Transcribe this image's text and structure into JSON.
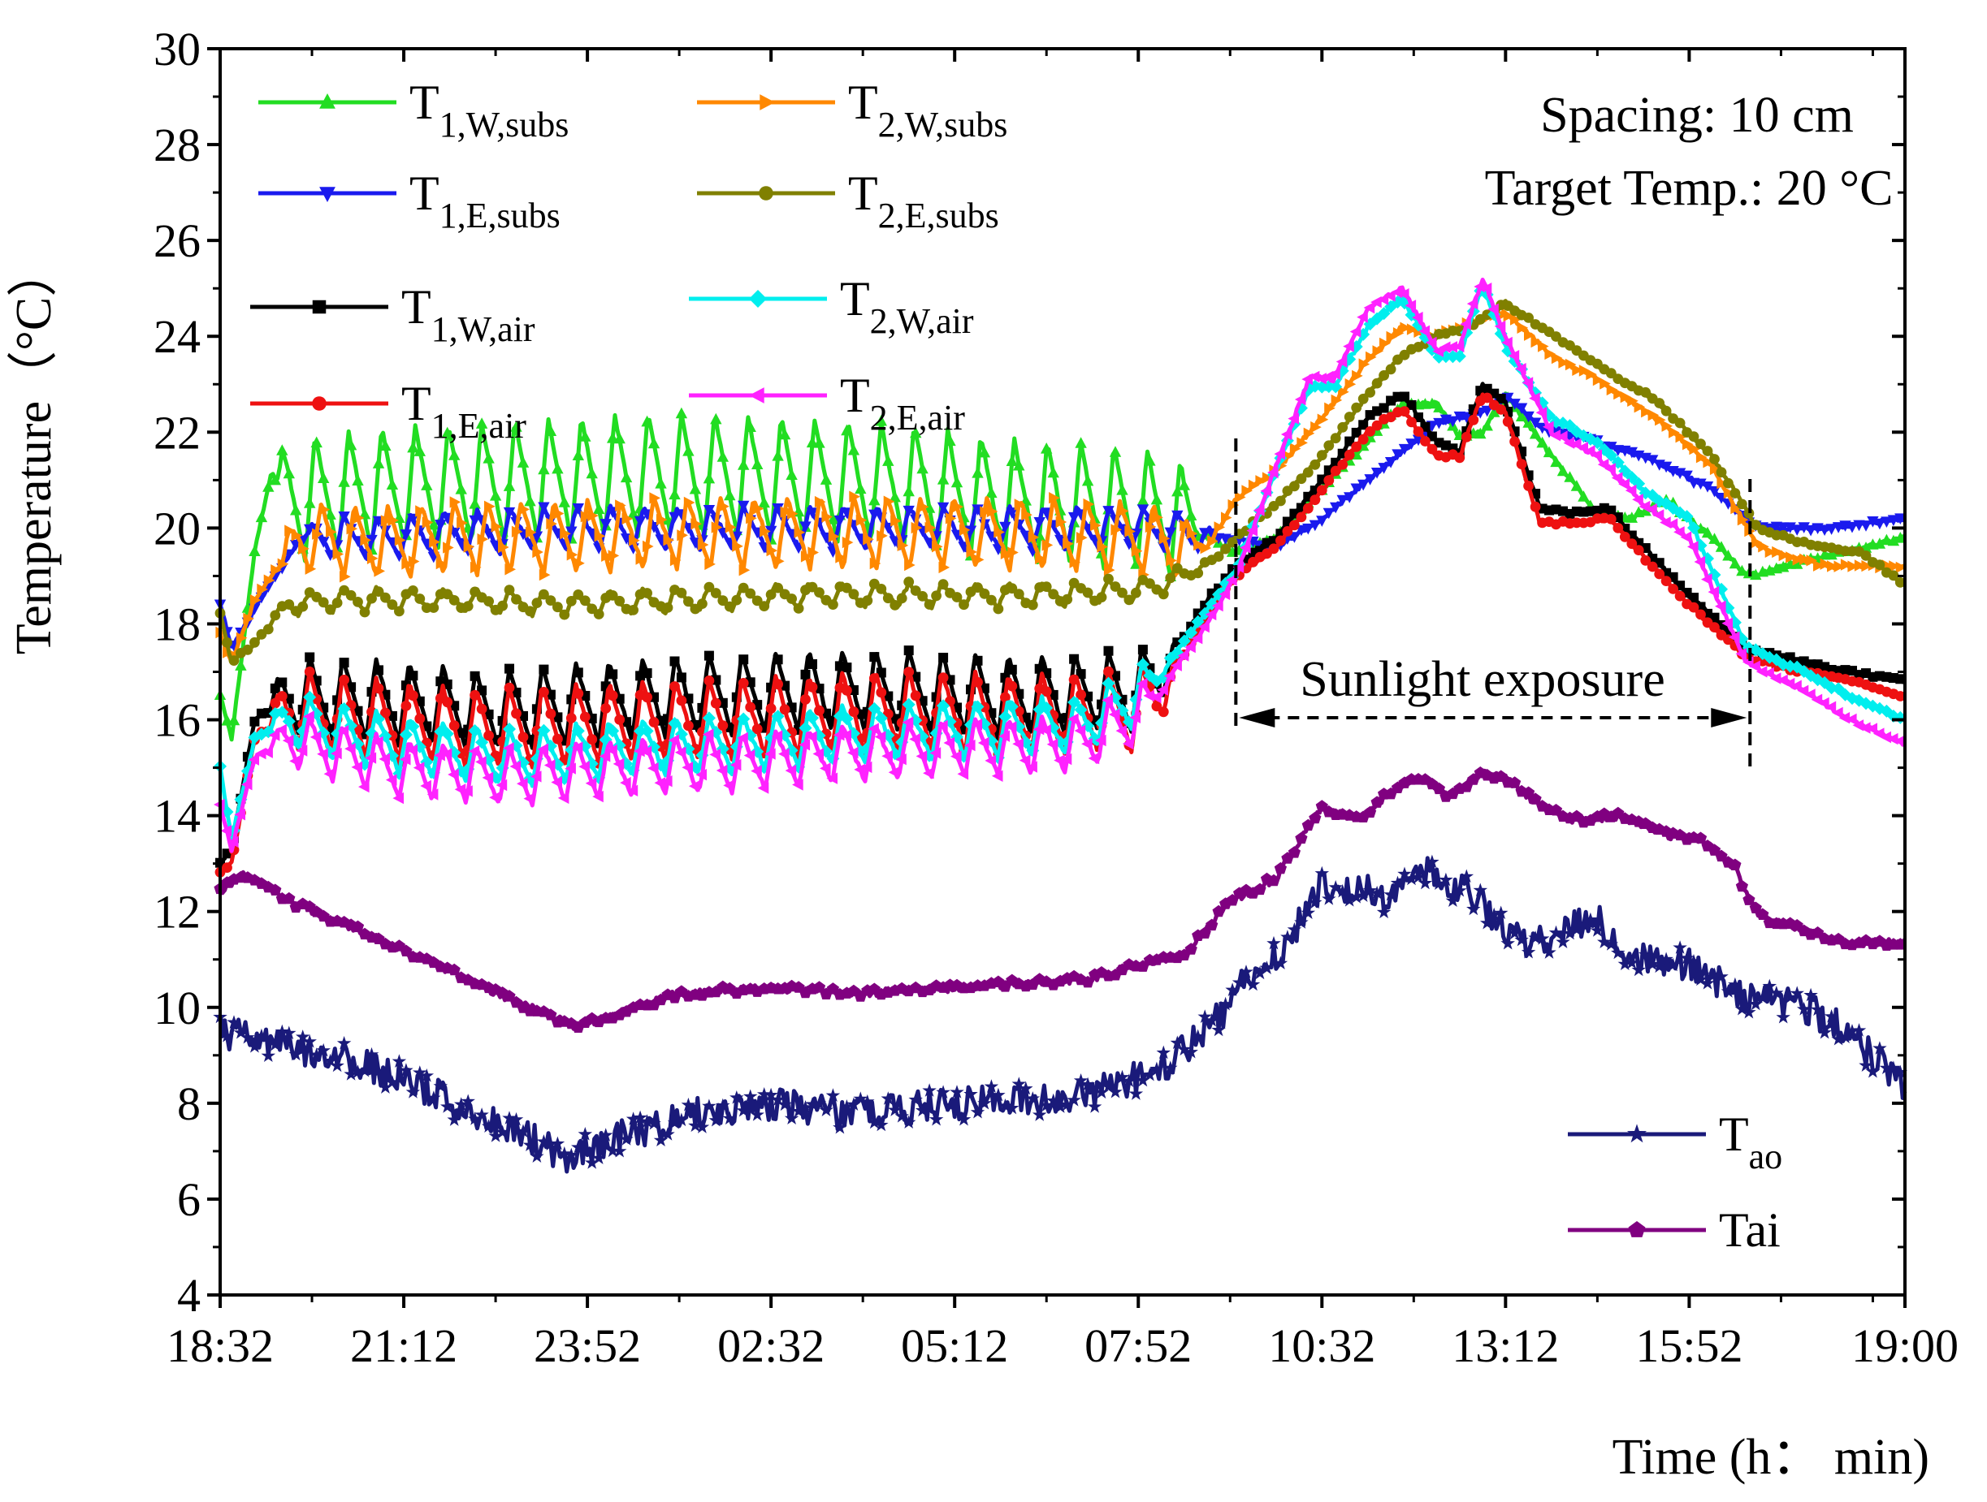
{
  "chart_data": {
    "type": "line",
    "title": "",
    "xlabel": "Time (h： min)",
    "ylabel": "Temperature （°C）",
    "ylabel_main": "Temperature",
    "ylabel_unit": "（°C）",
    "xlim_min": [
      0,
      1468
    ],
    "ylim": [
      4,
      30
    ],
    "yticks": [
      4,
      6,
      8,
      10,
      12,
      14,
      16,
      18,
      20,
      22,
      24,
      26,
      28,
      30
    ],
    "xticks": [
      {
        "min": 0,
        "label": "18:32"
      },
      {
        "min": 160,
        "label": "21:12"
      },
      {
        "min": 320,
        "label": "23:52"
      },
      {
        "min": 480,
        "label": "02:32"
      },
      {
        "min": 640,
        "label": "05:12"
      },
      {
        "min": 800,
        "label": "07:52"
      },
      {
        "min": 960,
        "label": "10:32"
      },
      {
        "min": 1120,
        "label": "13:12"
      },
      {
        "min": 1280,
        "label": "15:52"
      },
      {
        "min": 1468,
        "label": "19:00"
      }
    ],
    "grid": false,
    "annotations": {
      "info_line1": "Spacing: 10 cm",
      "info_line2": "Target Temp.: 20 °C",
      "sunlight_label": "Sunlight exposure",
      "sunlight_start_min": 885,
      "sunlight_end_min": 1333
    },
    "series": [
      {
        "name": "T1,W,subs",
        "main": "T",
        "sub": "1,W,subs",
        "color": "#22dd22",
        "marker": "triangle-up",
        "x": [
          0,
          10,
          30,
          45,
          60,
          130,
          200,
          280,
          360,
          440,
          520,
          600,
          680,
          760,
          800,
          845,
          880,
          920,
          960,
          1000,
          1030,
          1060,
          1080,
          1100,
          1120,
          1160,
          1200,
          1230,
          1260,
          1300,
          1330,
          1380,
          1468
        ],
        "y": [
          16.5,
          15.6,
          19.5,
          21.2,
          20.6,
          20.8,
          20.9,
          21.0,
          21.1,
          21.1,
          21.0,
          20.9,
          20.6,
          20.5,
          20.4,
          20.2,
          19.5,
          19.8,
          20.8,
          21.8,
          22.6,
          22.6,
          21.9,
          22.0,
          22.8,
          21.5,
          20.3,
          20.2,
          20.6,
          19.8,
          19.0,
          19.3,
          19.8
        ],
        "osc": {
          "start": 45,
          "end": 860,
          "period": 29,
          "amp": 1.3
        }
      },
      {
        "name": "T1,E,subs",
        "main": "T",
        "sub": "1,E,subs",
        "color": "#1a1aee",
        "marker": "triangle-down",
        "x": [
          0,
          10,
          30,
          70,
          140,
          200,
          300,
          400,
          500,
          600,
          700,
          800,
          880,
          920,
          960,
          1000,
          1030,
          1060,
          1080,
          1100,
          1120,
          1150,
          1200,
          1250,
          1300,
          1340,
          1400,
          1468
        ],
        "y": [
          18.4,
          17.5,
          18.3,
          19.8,
          19.8,
          19.9,
          20.0,
          20.0,
          20.0,
          20.0,
          20.0,
          20.0,
          19.8,
          19.6,
          20.2,
          21.0,
          21.6,
          22.2,
          22.3,
          22.4,
          22.8,
          22.1,
          21.8,
          21.4,
          20.8,
          20.0,
          20.0,
          20.2
        ],
        "osc": {
          "start": 70,
          "end": 870,
          "period": 29,
          "amp": 0.45
        }
      },
      {
        "name": "T1,W,air",
        "main": "T",
        "sub": "1,W,air",
        "color": "#000000",
        "marker": "square",
        "x": [
          0,
          10,
          30,
          60,
          150,
          230,
          300,
          400,
          500,
          600,
          700,
          800,
          830,
          860,
          885,
          920,
          960,
          1000,
          1030,
          1060,
          1080,
          1100,
          1120,
          1150,
          1180,
          1210,
          1240,
          1280,
          1330,
          1380,
          1420,
          1468
        ],
        "y": [
          13.0,
          13.3,
          16.0,
          16.5,
          16.4,
          16.2,
          16.3,
          16.5,
          16.6,
          16.6,
          16.5,
          16.6,
          17.3,
          18.5,
          19.2,
          19.8,
          21.0,
          22.3,
          22.8,
          21.8,
          21.6,
          23.0,
          22.6,
          20.4,
          20.3,
          20.4,
          19.6,
          18.6,
          17.5,
          17.2,
          17.0,
          16.8
        ],
        "osc": {
          "start": 40,
          "end": 840,
          "period": 29,
          "amp": 0.85
        }
      },
      {
        "name": "T1,E,air",
        "main": "T",
        "sub": "1,E,air",
        "color": "#ee1111",
        "marker": "circle",
        "x": [
          0,
          10,
          30,
          60,
          150,
          230,
          300,
          400,
          500,
          600,
          700,
          800,
          830,
          860,
          885,
          920,
          960,
          1000,
          1030,
          1060,
          1080,
          1100,
          1120,
          1150,
          1180,
          1210,
          1240,
          1280,
          1330,
          1380,
          1420,
          1468
        ],
        "y": [
          12.8,
          13.0,
          15.6,
          16.2,
          16.0,
          15.8,
          15.9,
          16.0,
          16.1,
          16.2,
          16.1,
          16.2,
          16.9,
          18.2,
          19.0,
          19.6,
          20.8,
          22.0,
          22.5,
          21.5,
          21.5,
          22.8,
          22.4,
          20.1,
          20.1,
          20.2,
          19.4,
          18.4,
          17.3,
          17.0,
          16.8,
          16.5
        ],
        "osc": {
          "start": 40,
          "end": 840,
          "period": 29,
          "amp": 0.85
        }
      },
      {
        "name": "T2,W,subs",
        "main": "T",
        "sub": "2,W,subs",
        "color": "#ff8800",
        "marker": "triangle-right",
        "x": [
          0,
          10,
          30,
          70,
          140,
          200,
          300,
          400,
          500,
          600,
          700,
          800,
          860,
          885,
          920,
          960,
          1000,
          1030,
          1060,
          1090,
          1120,
          1160,
          1200,
          1250,
          1300,
          1340,
          1400,
          1468
        ],
        "y": [
          17.8,
          17.2,
          18.5,
          19.8,
          19.7,
          19.8,
          19.8,
          19.9,
          19.9,
          19.9,
          19.9,
          19.8,
          19.6,
          20.6,
          21.2,
          22.3,
          23.5,
          24.2,
          24.0,
          24.3,
          24.5,
          23.6,
          23.1,
          22.3,
          21.3,
          19.6,
          19.2,
          19.2
        ],
        "osc": {
          "start": 50,
          "end": 860,
          "period": 29,
          "amp": 0.75
        }
      },
      {
        "name": "T2,E,subs",
        "main": "T",
        "sub": "2,E,subs",
        "color": "#808000",
        "marker": "circle",
        "x": [
          0,
          10,
          30,
          60,
          100,
          200,
          300,
          400,
          500,
          600,
          700,
          800,
          840,
          870,
          885,
          920,
          960,
          1000,
          1030,
          1060,
          1090,
          1120,
          1150,
          1200,
          1250,
          1300,
          1340,
          1380,
          1430,
          1468
        ],
        "y": [
          18.2,
          17.2,
          17.6,
          18.4,
          18.5,
          18.5,
          18.4,
          18.5,
          18.6,
          18.6,
          18.6,
          18.7,
          19.0,
          19.4,
          19.8,
          20.5,
          21.5,
          22.8,
          23.6,
          24.0,
          24.2,
          24.7,
          24.2,
          23.4,
          22.7,
          21.5,
          20.0,
          19.7,
          19.5,
          18.8
        ],
        "osc": {
          "start": 40,
          "end": 860,
          "period": 29,
          "amp": 0.25
        }
      },
      {
        "name": "T2,W,air",
        "main": "T",
        "sub": "2,W,air",
        "color": "#00eeee",
        "marker": "diamond",
        "x": [
          0,
          10,
          30,
          60,
          150,
          250,
          350,
          450,
          550,
          650,
          750,
          800,
          830,
          860,
          885,
          920,
          950,
          970,
          1000,
          1030,
          1060,
          1080,
          1100,
          1120,
          1160,
          1200,
          1240,
          1280,
          1330,
          1380,
          1420,
          1468
        ],
        "y": [
          15.0,
          13.5,
          15.6,
          16.0,
          15.5,
          15.2,
          15.4,
          15.5,
          15.7,
          15.8,
          15.9,
          16.5,
          17.3,
          18.3,
          19.1,
          21.2,
          23.0,
          22.9,
          24.2,
          24.8,
          23.6,
          23.6,
          25.1,
          23.8,
          22.3,
          21.8,
          20.8,
          20.2,
          17.5,
          17.0,
          16.5,
          16.0
        ],
        "osc": {
          "start": 40,
          "end": 830,
          "period": 29,
          "amp": 0.6
        }
      },
      {
        "name": "T2,E,air",
        "main": "T",
        "sub": "2,E,air",
        "color": "#ff22ff",
        "marker": "triangle-left",
        "x": [
          0,
          10,
          30,
          60,
          150,
          250,
          350,
          450,
          550,
          650,
          750,
          800,
          830,
          860,
          885,
          920,
          950,
          970,
          1000,
          1030,
          1060,
          1080,
          1100,
          1120,
          1160,
          1200,
          1240,
          1280,
          1330,
          1380,
          1420,
          1468
        ],
        "y": [
          14.2,
          13.3,
          15.2,
          15.6,
          15.0,
          14.8,
          15.0,
          15.1,
          15.3,
          15.4,
          15.5,
          16.1,
          17.0,
          18.0,
          19.0,
          21.3,
          23.2,
          23.1,
          24.6,
          25.0,
          23.7,
          23.8,
          25.2,
          24.0,
          22.0,
          21.5,
          20.5,
          19.8,
          17.2,
          16.6,
          16.0,
          15.5
        ],
        "osc": {
          "start": 40,
          "end": 830,
          "period": 29,
          "amp": 0.6
        }
      },
      {
        "name": "Tao",
        "main": "T",
        "sub": "ao",
        "color": "#1a1a7a",
        "marker": "star",
        "x": [
          0,
          50,
          100,
          160,
          220,
          270,
          300,
          360,
          420,
          480,
          540,
          600,
          660,
          720,
          780,
          830,
          870,
          900,
          930,
          960,
          990,
          1020,
          1050,
          1080,
          1110,
          1140,
          1170,
          1200,
          1230,
          1260,
          1290,
          1320,
          1360,
          1400,
          1430,
          1468
        ],
        "y": [
          9.5,
          9.2,
          9.0,
          8.5,
          7.8,
          7.3,
          6.9,
          7.4,
          7.8,
          8.0,
          7.8,
          7.9,
          8.0,
          8.1,
          8.3,
          8.9,
          9.8,
          10.8,
          11.3,
          12.6,
          12.5,
          12.2,
          12.8,
          12.5,
          11.9,
          11.2,
          11.6,
          11.8,
          11.1,
          11.0,
          10.8,
          10.3,
          10.1,
          9.8,
          9.2,
          8.3
        ],
        "noise": 0.35
      },
      {
        "name": "Tai",
        "main": "Tai",
        "sub": "",
        "color": "#800080",
        "marker": "pentagon",
        "x": [
          0,
          20,
          60,
          120,
          180,
          240,
          280,
          310,
          350,
          400,
          480,
          560,
          640,
          700,
          760,
          800,
          840,
          880,
          920,
          960,
          990,
          1020,
          1050,
          1070,
          1100,
          1120,
          1150,
          1180,
          1220,
          1260,
          1290,
          1320,
          1340,
          1380,
          1420,
          1468
        ],
        "y": [
          12.4,
          12.8,
          12.2,
          11.6,
          11.0,
          10.3,
          9.9,
          9.6,
          9.9,
          10.3,
          10.4,
          10.3,
          10.4,
          10.5,
          10.6,
          10.9,
          11.1,
          12.2,
          12.7,
          14.2,
          13.9,
          14.5,
          14.8,
          14.4,
          14.9,
          14.8,
          14.2,
          13.9,
          14.0,
          13.6,
          13.5,
          12.9,
          11.9,
          11.6,
          11.3,
          11.4
        ],
        "noise": 0.08
      }
    ]
  }
}
